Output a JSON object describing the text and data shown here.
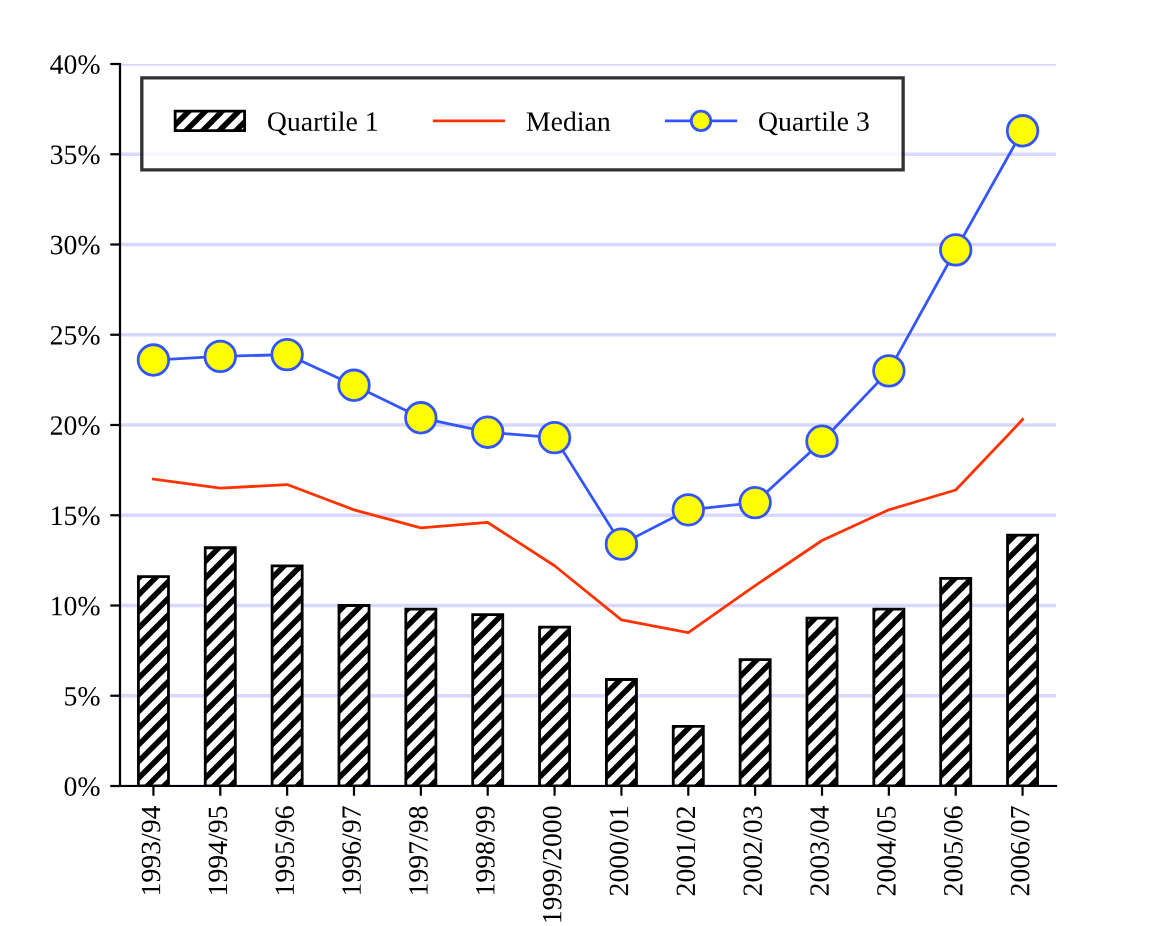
{
  "chart_data": {
    "type": "bar",
    "categories": [
      "1993/94",
      "1994/95",
      "1995/96",
      "1996/97",
      "1997/98",
      "1998/99",
      "1999/2000",
      "2000/01",
      "2001/02",
      "2002/03",
      "2003/04",
      "2004/05",
      "2005/06",
      "2006/07"
    ],
    "series": [
      {
        "name": "Quartile 1",
        "color": "#000000",
        "values": [
          11.6,
          13.2,
          12.2,
          10.0,
          9.8,
          9.5,
          8.8,
          5.9,
          3.3,
          7.0,
          9.3,
          9.8,
          11.5,
          13.9
        ]
      },
      {
        "name": "Median",
        "type": "line",
        "color": "#ff3300",
        "marker": "none",
        "values": [
          17.0,
          16.5,
          16.7,
          15.3,
          14.3,
          14.6,
          12.2,
          9.2,
          8.5,
          11.1,
          13.6,
          15.3,
          16.4,
          20.3
        ]
      },
      {
        "name": "Quartile 3",
        "type": "line",
        "color": "#3355ff",
        "marker": "circle",
        "values": [
          23.6,
          23.8,
          23.9,
          22.2,
          20.4,
          19.6,
          19.3,
          13.4,
          15.3,
          15.7,
          19.1,
          23.0,
          29.7,
          36.3
        ]
      }
    ],
    "ylim": [
      0,
      40
    ],
    "yticks": [
      {
        "value": 0,
        "label": "0%"
      },
      {
        "value": 5,
        "label": "5%"
      },
      {
        "value": 10,
        "label": "10%"
      },
      {
        "value": 15,
        "label": "15%"
      },
      {
        "value": 20,
        "label": "20%"
      },
      {
        "value": 25,
        "label": "25%"
      },
      {
        "value": 30,
        "label": "30%"
      },
      {
        "value": 35,
        "label": "35%"
      },
      {
        "value": 40,
        "label": "40%"
      }
    ],
    "grid": "y",
    "legend": "top"
  }
}
